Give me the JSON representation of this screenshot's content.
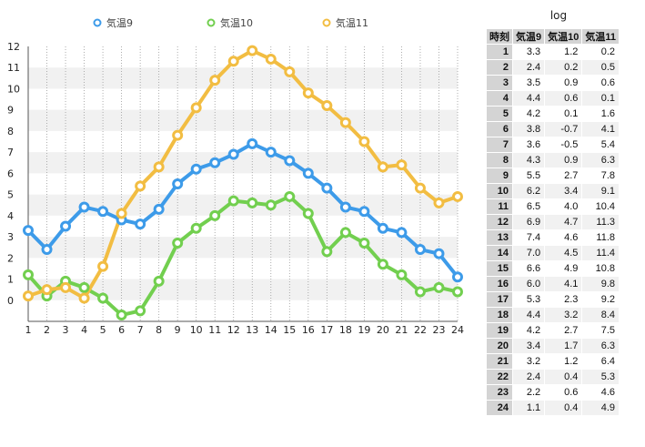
{
  "chart_data": {
    "type": "line",
    "x": [
      1,
      2,
      3,
      4,
      5,
      6,
      7,
      8,
      9,
      10,
      11,
      12,
      13,
      14,
      15,
      16,
      17,
      18,
      19,
      20,
      21,
      22,
      23,
      24
    ],
    "ylim": [
      -1,
      12
    ],
    "yticks": [
      0,
      1,
      2,
      3,
      4,
      5,
      6,
      7,
      8,
      9,
      10,
      11,
      12
    ],
    "grid": "on",
    "legend_position": "top",
    "series": [
      {
        "name": "気温9",
        "color": "#3d9be9",
        "values": [
          3.3,
          2.4,
          3.5,
          4.4,
          4.2,
          3.8,
          3.6,
          4.3,
          5.5,
          6.2,
          6.5,
          6.9,
          7.4,
          7.0,
          6.6,
          6.0,
          5.3,
          4.4,
          4.2,
          3.4,
          3.2,
          2.4,
          2.2,
          1.1
        ]
      },
      {
        "name": "気温10",
        "color": "#72cf4f",
        "values": [
          1.2,
          0.2,
          0.9,
          0.6,
          0.1,
          -0.7,
          -0.5,
          0.9,
          2.7,
          3.4,
          4.0,
          4.7,
          4.6,
          4.5,
          4.9,
          4.1,
          2.3,
          3.2,
          2.7,
          1.7,
          1.2,
          0.4,
          0.6,
          0.4
        ]
      },
      {
        "name": "気温11",
        "color": "#f2bd42",
        "values": [
          0.2,
          0.5,
          0.6,
          0.1,
          1.6,
          4.1,
          5.4,
          6.3,
          7.8,
          9.1,
          10.4,
          11.3,
          11.8,
          11.4,
          10.8,
          9.8,
          9.2,
          8.4,
          7.5,
          6.3,
          6.4,
          5.3,
          4.6,
          4.9
        ]
      }
    ]
  },
  "log": {
    "title": "log",
    "headers": [
      "時刻",
      "気温9",
      "気温10",
      "気温11"
    ],
    "rows": [
      [
        "1",
        "3.3",
        "1.2",
        "0.2"
      ],
      [
        "2",
        "2.4",
        "0.2",
        "0.5"
      ],
      [
        "3",
        "3.5",
        "0.9",
        "0.6"
      ],
      [
        "4",
        "4.4",
        "0.6",
        "0.1"
      ],
      [
        "5",
        "4.2",
        "0.1",
        "1.6"
      ],
      [
        "6",
        "3.8",
        "-0.7",
        "4.1"
      ],
      [
        "7",
        "3.6",
        "-0.5",
        "5.4"
      ],
      [
        "8",
        "4.3",
        "0.9",
        "6.3"
      ],
      [
        "9",
        "5.5",
        "2.7",
        "7.8"
      ],
      [
        "10",
        "6.2",
        "3.4",
        "9.1"
      ],
      [
        "11",
        "6.5",
        "4.0",
        "10.4"
      ],
      [
        "12",
        "6.9",
        "4.7",
        "11.3"
      ],
      [
        "13",
        "7.4",
        "4.6",
        "11.8"
      ],
      [
        "14",
        "7.0",
        "4.5",
        "11.4"
      ],
      [
        "15",
        "6.6",
        "4.9",
        "10.8"
      ],
      [
        "16",
        "6.0",
        "4.1",
        "9.8"
      ],
      [
        "17",
        "5.3",
        "2.3",
        "9.2"
      ],
      [
        "18",
        "4.4",
        "3.2",
        "8.4"
      ],
      [
        "19",
        "4.2",
        "2.7",
        "7.5"
      ],
      [
        "20",
        "3.4",
        "1.7",
        "6.3"
      ],
      [
        "21",
        "3.2",
        "1.2",
        "6.4"
      ],
      [
        "22",
        "2.4",
        "0.4",
        "5.3"
      ],
      [
        "23",
        "2.2",
        "0.6",
        "4.6"
      ],
      [
        "24",
        "1.1",
        "0.4",
        "4.9"
      ]
    ]
  }
}
